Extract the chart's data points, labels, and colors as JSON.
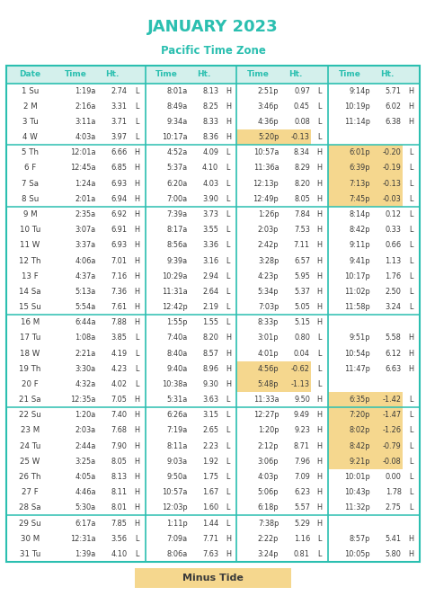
{
  "title": "JANUARY 2023",
  "subtitle": "Pacific Time Zone",
  "title_color": "#2bbfb0",
  "header_bg": "#d4f0ec",
  "border_color": "#2bbfb0",
  "highlight_yellow": "#f5d78e",
  "text_color": "#3a3a3a",
  "bg_color": "#ffffff",
  "footer_text": "Minus Tide",
  "rows": [
    {
      "day": "1 Su",
      "t1": "1:19a",
      "h1": "2.74",
      "hl1": "L",
      "t2": "8:01a",
      "h2": "8.13",
      "hl2": "H",
      "t3": "2:51p",
      "h3": "0.97",
      "hl3": "L",
      "t4": "9:14p",
      "h4": "5.71",
      "hl4": "H",
      "hi": []
    },
    {
      "day": "2 M",
      "t1": "2:16a",
      "h1": "3.31",
      "hl1": "L",
      "t2": "8:49a",
      "h2": "8.25",
      "hl2": "H",
      "t3": "3:46p",
      "h3": "0.45",
      "hl3": "L",
      "t4": "10:19p",
      "h4": "6.02",
      "hl4": "H",
      "hi": []
    },
    {
      "day": "3 Tu",
      "t1": "3:11a",
      "h1": "3.71",
      "hl1": "L",
      "t2": "9:34a",
      "h2": "8.33",
      "hl2": "H",
      "t3": "4:36p",
      "h3": "0.08",
      "hl3": "L",
      "t4": "11:14p",
      "h4": "6.38",
      "hl4": "H",
      "hi": []
    },
    {
      "day": "4 W",
      "t1": "4:03a",
      "h1": "3.97",
      "hl1": "L",
      "t2": "10:17a",
      "h2": "8.36",
      "hl2": "H",
      "t3": "5:20p",
      "h3": "-0.13",
      "hl3": "L",
      "t4": "",
      "h4": "",
      "hl4": "",
      "hi": [
        3
      ]
    },
    {
      "day": "5 Th",
      "t1": "12:01a",
      "h1": "6.66",
      "hl1": "H",
      "t2": "4:52a",
      "h2": "4.09",
      "hl2": "L",
      "t3": "10:57a",
      "h3": "8.34",
      "hl3": "H",
      "t4": "6:01p",
      "h4": "-0.20",
      "hl4": "L",
      "hi": [
        4
      ]
    },
    {
      "day": "6 F",
      "t1": "12:45a",
      "h1": "6.85",
      "hl1": "H",
      "t2": "5:37a",
      "h2": "4.10",
      "hl2": "L",
      "t3": "11:36a",
      "h3": "8.29",
      "hl3": "H",
      "t4": "6:39p",
      "h4": "-0.19",
      "hl4": "L",
      "hi": [
        4
      ]
    },
    {
      "day": "7 Sa",
      "t1": "1:24a",
      "h1": "6.93",
      "hl1": "H",
      "t2": "6:20a",
      "h2": "4.03",
      "hl2": "L",
      "t3": "12:13p",
      "h3": "8.20",
      "hl3": "H",
      "t4": "7:13p",
      "h4": "-0.13",
      "hl4": "L",
      "hi": [
        4
      ]
    },
    {
      "day": "8 Su",
      "t1": "2:01a",
      "h1": "6.94",
      "hl1": "H",
      "t2": "7:00a",
      "h2": "3.90",
      "hl2": "L",
      "t3": "12:49p",
      "h3": "8.05",
      "hl3": "H",
      "t4": "7:45p",
      "h4": "-0.03",
      "hl4": "L",
      "hi": [
        4
      ]
    },
    {
      "day": "9 M",
      "t1": "2:35a",
      "h1": "6.92",
      "hl1": "H",
      "t2": "7:39a",
      "h2": "3.73",
      "hl2": "L",
      "t3": "1:26p",
      "h3": "7.84",
      "hl3": "H",
      "t4": "8:14p",
      "h4": "0.12",
      "hl4": "L",
      "hi": []
    },
    {
      "day": "10 Tu",
      "t1": "3:07a",
      "h1": "6.91",
      "hl1": "H",
      "t2": "8:17a",
      "h2": "3.55",
      "hl2": "L",
      "t3": "2:03p",
      "h3": "7.53",
      "hl3": "H",
      "t4": "8:42p",
      "h4": "0.33",
      "hl4": "L",
      "hi": []
    },
    {
      "day": "11 W",
      "t1": "3:37a",
      "h1": "6.93",
      "hl1": "H",
      "t2": "8:56a",
      "h2": "3.36",
      "hl2": "L",
      "t3": "2:42p",
      "h3": "7.11",
      "hl3": "H",
      "t4": "9:11p",
      "h4": "0.66",
      "hl4": "L",
      "hi": []
    },
    {
      "day": "12 Th",
      "t1": "4:06a",
      "h1": "7.01",
      "hl1": "H",
      "t2": "9:39a",
      "h2": "3.16",
      "hl2": "L",
      "t3": "3:28p",
      "h3": "6.57",
      "hl3": "H",
      "t4": "9:41p",
      "h4": "1.13",
      "hl4": "L",
      "hi": []
    },
    {
      "day": "13 F",
      "t1": "4:37a",
      "h1": "7.16",
      "hl1": "H",
      "t2": "10:29a",
      "h2": "2.94",
      "hl2": "L",
      "t3": "4:23p",
      "h3": "5.95",
      "hl3": "H",
      "t4": "10:17p",
      "h4": "1.76",
      "hl4": "L",
      "hi": []
    },
    {
      "day": "14 Sa",
      "t1": "5:13a",
      "h1": "7.36",
      "hl1": "H",
      "t2": "11:31a",
      "h2": "2.64",
      "hl2": "L",
      "t3": "5:34p",
      "h3": "5.37",
      "hl3": "H",
      "t4": "11:02p",
      "h4": "2.50",
      "hl4": "L",
      "hi": []
    },
    {
      "day": "15 Su",
      "t1": "5:54a",
      "h1": "7.61",
      "hl1": "H",
      "t2": "12:42p",
      "h2": "2.19",
      "hl2": "L",
      "t3": "7:03p",
      "h3": "5.05",
      "hl3": "H",
      "t4": "11:58p",
      "h4": "3.24",
      "hl4": "L",
      "hi": []
    },
    {
      "day": "16 M",
      "t1": "6:44a",
      "h1": "7.88",
      "hl1": "H",
      "t2": "1:55p",
      "h2": "1.55",
      "hl2": "L",
      "t3": "8:33p",
      "h3": "5.15",
      "hl3": "H",
      "t4": "",
      "h4": "",
      "hl4": "",
      "hi": []
    },
    {
      "day": "17 Tu",
      "t1": "1:08a",
      "h1": "3.85",
      "hl1": "L",
      "t2": "7:40a",
      "h2": "8.20",
      "hl2": "H",
      "t3": "3:01p",
      "h3": "0.80",
      "hl3": "L",
      "t4": "9:51p",
      "h4": "5.58",
      "hl4": "H",
      "hi": []
    },
    {
      "day": "18 W",
      "t1": "2:21a",
      "h1": "4.19",
      "hl1": "L",
      "t2": "8:40a",
      "h2": "8.57",
      "hl2": "H",
      "t3": "4:01p",
      "h3": "0.04",
      "hl3": "L",
      "t4": "10:54p",
      "h4": "6.12",
      "hl4": "H",
      "hi": []
    },
    {
      "day": "19 Th",
      "t1": "3:30a",
      "h1": "4.23",
      "hl1": "L",
      "t2": "9:40a",
      "h2": "8.96",
      "hl2": "H",
      "t3": "4:56p",
      "h3": "-0.62",
      "hl3": "L",
      "t4": "11:47p",
      "h4": "6.63",
      "hl4": "H",
      "hi": [
        3
      ]
    },
    {
      "day": "20 F",
      "t1": "4:32a",
      "h1": "4.02",
      "hl1": "L",
      "t2": "10:38a",
      "h2": "9.30",
      "hl2": "H",
      "t3": "5:48p",
      "h3": "-1.13",
      "hl3": "L",
      "t4": "",
      "h4": "",
      "hl4": "",
      "hi": [
        3
      ]
    },
    {
      "day": "21 Sa",
      "t1": "12:35a",
      "h1": "7.05",
      "hl1": "H",
      "t2": "5:31a",
      "h2": "3.63",
      "hl2": "L",
      "t3": "11:33a",
      "h3": "9.50",
      "hl3": "H",
      "t4": "6:35p",
      "h4": "-1.42",
      "hl4": "L",
      "hi": [
        4
      ]
    },
    {
      "day": "22 Su",
      "t1": "1:20a",
      "h1": "7.40",
      "hl1": "H",
      "t2": "6:26a",
      "h2": "3.15",
      "hl2": "L",
      "t3": "12:27p",
      "h3": "9.49",
      "hl3": "H",
      "t4": "7:20p",
      "h4": "-1.47",
      "hl4": "L",
      "hi": [
        4
      ]
    },
    {
      "day": "23 M",
      "t1": "2:03a",
      "h1": "7.68",
      "hl1": "H",
      "t2": "7:19a",
      "h2": "2.65",
      "hl2": "L",
      "t3": "1:20p",
      "h3": "9.23",
      "hl3": "H",
      "t4": "8:02p",
      "h4": "-1.26",
      "hl4": "L",
      "hi": [
        4
      ]
    },
    {
      "day": "24 Tu",
      "t1": "2:44a",
      "h1": "7.90",
      "hl1": "H",
      "t2": "8:11a",
      "h2": "2.23",
      "hl2": "L",
      "t3": "2:12p",
      "h3": "8.71",
      "hl3": "H",
      "t4": "8:42p",
      "h4": "-0.79",
      "hl4": "L",
      "hi": [
        4
      ]
    },
    {
      "day": "25 W",
      "t1": "3:25a",
      "h1": "8.05",
      "hl1": "H",
      "t2": "9:03a",
      "h2": "1.92",
      "hl2": "L",
      "t3": "3:06p",
      "h3": "7.96",
      "hl3": "H",
      "t4": "9:21p",
      "h4": "-0.08",
      "hl4": "L",
      "hi": [
        4
      ]
    },
    {
      "day": "26 Th",
      "t1": "4:05a",
      "h1": "8.13",
      "hl1": "H",
      "t2": "9:50a",
      "h2": "1.75",
      "hl2": "L",
      "t3": "4:03p",
      "h3": "7.09",
      "hl3": "H",
      "t4": "10:01p",
      "h4": "0.00",
      "hl4": "L",
      "hi": []
    },
    {
      "day": "27 F",
      "t1": "4:46a",
      "h1": "8.11",
      "hl1": "H",
      "t2": "10:57a",
      "h2": "1.67",
      "hl2": "L",
      "t3": "5:06p",
      "h3": "6.23",
      "hl3": "H",
      "t4": "10:43p",
      "h4": "1.78",
      "hl4": "L",
      "hi": []
    },
    {
      "day": "28 Sa",
      "t1": "5:30a",
      "h1": "8.01",
      "hl1": "H",
      "t2": "12:03p",
      "h2": "1.60",
      "hl2": "L",
      "t3": "6:18p",
      "h3": "5.57",
      "hl3": "H",
      "t4": "11:32p",
      "h4": "2.75",
      "hl4": "L",
      "hi": []
    },
    {
      "day": "29 Su",
      "t1": "6:17a",
      "h1": "7.85",
      "hl1": "H",
      "t2": "1:11p",
      "h2": "1.44",
      "hl2": "L",
      "t3": "7:38p",
      "h3": "5.29",
      "hl3": "H",
      "t4": "",
      "h4": "",
      "hl4": "",
      "hi": []
    },
    {
      "day": "30 M",
      "t1": "12:31a",
      "h1": "3.56",
      "hl1": "L",
      "t2": "7:09a",
      "h2": "7.71",
      "hl2": "H",
      "t3": "2:22p",
      "h3": "1.16",
      "hl3": "L",
      "t4": "8:57p",
      "h4": "5.41",
      "hl4": "H",
      "hi": []
    },
    {
      "day": "31 Tu",
      "t1": "1:39a",
      "h1": "4.10",
      "hl1": "L",
      "t2": "8:06a",
      "h2": "7.63",
      "hl2": "H",
      "t3": "3:24p",
      "h3": "0.81",
      "hl3": "L",
      "t4": "10:05p",
      "h4": "5.80",
      "hl4": "H",
      "hi": []
    }
  ],
  "week_sep_after": [
    3,
    7,
    14,
    20,
    27
  ]
}
